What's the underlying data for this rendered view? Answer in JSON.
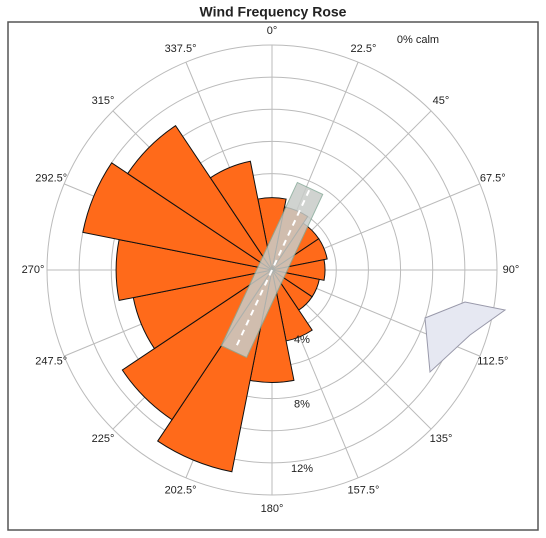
{
  "chart_data": {
    "type": "rose",
    "title": "Wind Frequency Rose",
    "calm_label": "0% calm",
    "categories": [
      "0°",
      "22.5°",
      "45°",
      "67.5°",
      "90°",
      "112.5°",
      "135°",
      "157.5°",
      "180°",
      "202.5°",
      "225°",
      "247.5°",
      "270°",
      "292.5°",
      "315°",
      "337.5°"
    ],
    "values": [
      4.5,
      4,
      3.5,
      3.5,
      3.3,
      3,
      3,
      4.5,
      7,
      12.8,
      11.2,
      8.8,
      9.7,
      12,
      10.8,
      6.9
    ],
    "color": "#ff6a1a",
    "ylim": [
      0,
      14
    ],
    "yticks": [
      {
        "value": 4,
        "label": "4%"
      },
      {
        "value": 8,
        "label": "8%"
      },
      {
        "value": 12,
        "label": "12%"
      }
    ],
    "minor_ticks": [
      2,
      6,
      10,
      14
    ],
    "grid": true
  }
}
